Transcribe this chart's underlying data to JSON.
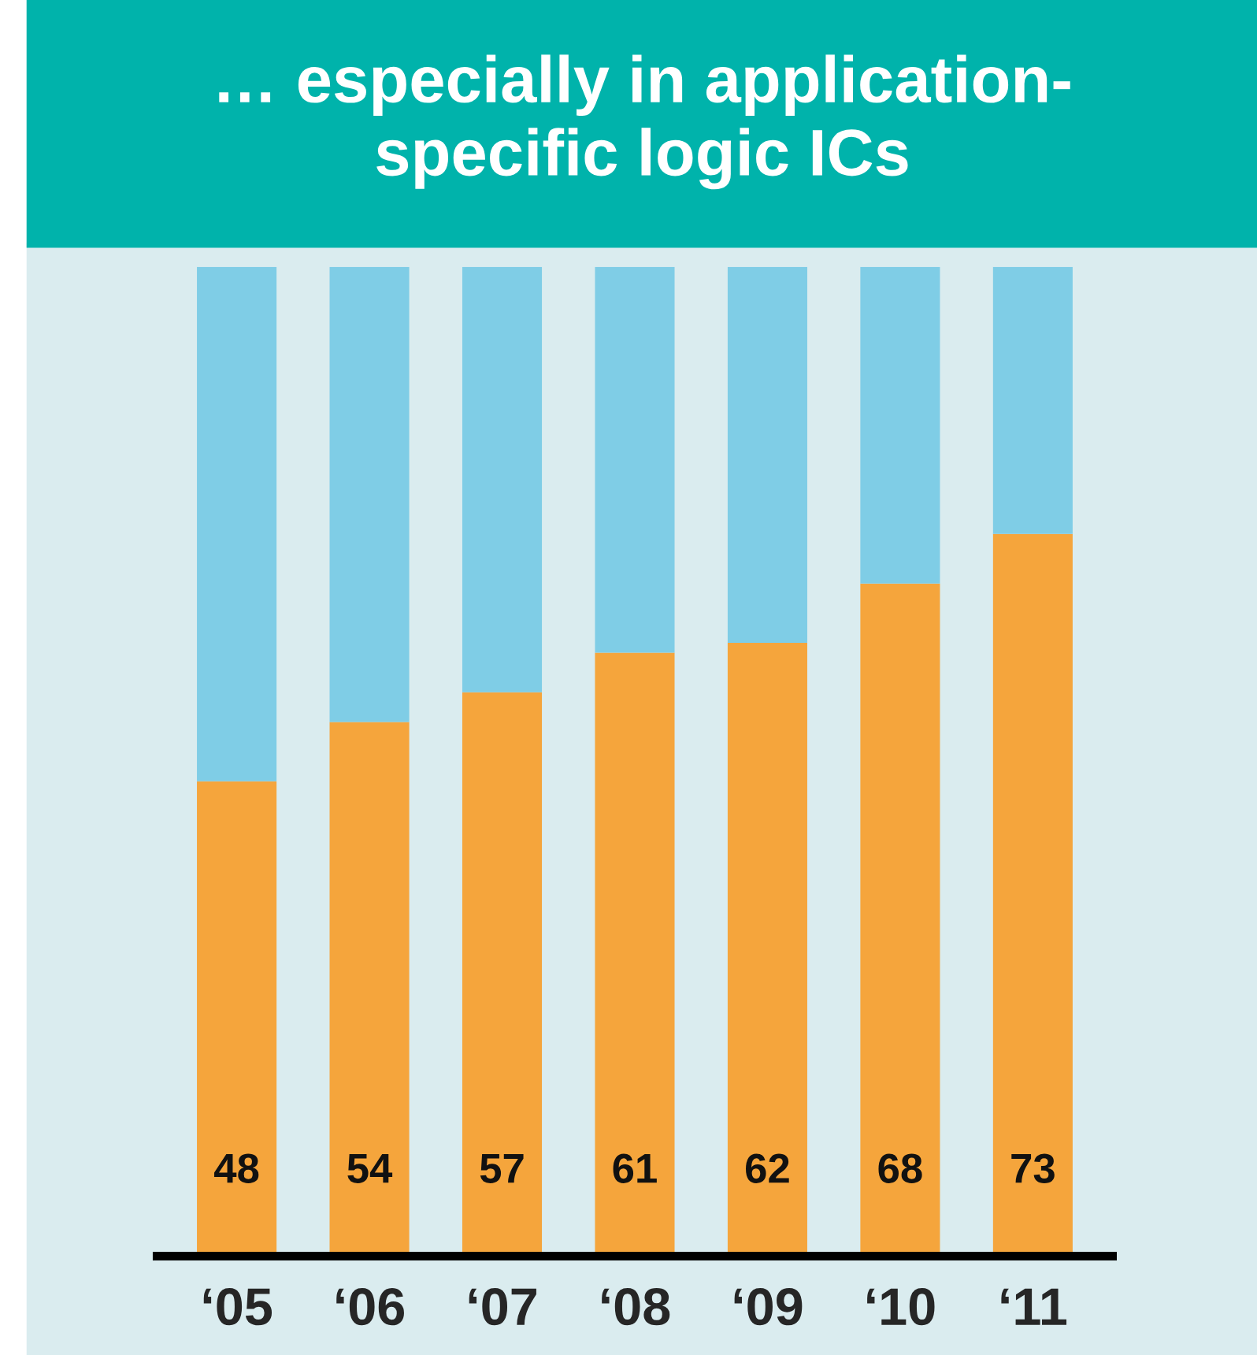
{
  "chart_data": {
    "type": "bar",
    "title": "… especially in application-\nspecific logic ICs",
    "stacked": true,
    "categories": [
      "‘05",
      "‘06",
      "‘07",
      "‘08",
      "‘09",
      "‘10",
      "‘11"
    ],
    "series": [
      {
        "color": "#f5a53c",
        "values": [
          48,
          54,
          57,
          61,
          62,
          68,
          73
        ],
        "value_labels": [
          "48",
          "54",
          "57",
          "61",
          "62",
          "68",
          "73"
        ]
      },
      {
        "color": "#7fcde6",
        "values": [
          52,
          46,
          43,
          39,
          38,
          32,
          27
        ]
      }
    ],
    "ylim": [
      0,
      100
    ],
    "grid": false,
    "legend": false,
    "tick_labels": "x"
  }
}
